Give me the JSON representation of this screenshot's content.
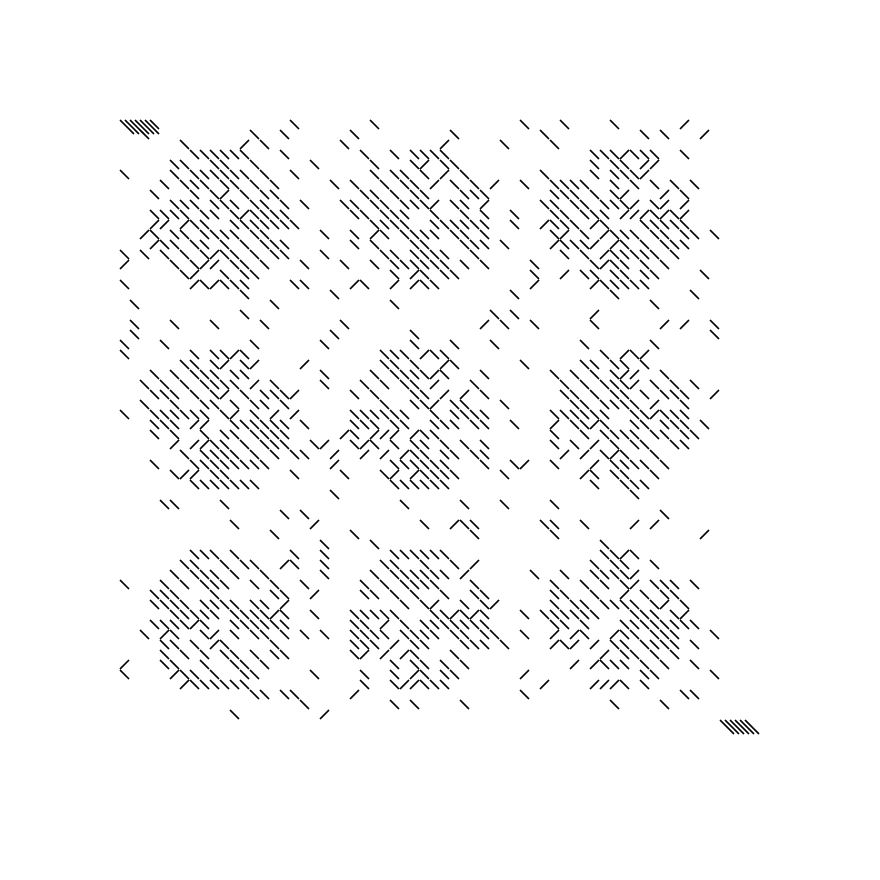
{
  "artwork": {
    "kind": "generative diagonal-dash tile pattern",
    "background_color": "#ffffff",
    "stroke_color": "#000000",
    "grid": {
      "rows": 3,
      "cols": 3
    },
    "cells_per_tile": 20,
    "motif": "concentric ring",
    "ring_radii": [
      6.5,
      5.0,
      3.5,
      2.0
    ],
    "ring_band_width": 0.55,
    "background_dash_density": 0.09,
    "ring_dash_density": 0.82,
    "seed": 7
  }
}
